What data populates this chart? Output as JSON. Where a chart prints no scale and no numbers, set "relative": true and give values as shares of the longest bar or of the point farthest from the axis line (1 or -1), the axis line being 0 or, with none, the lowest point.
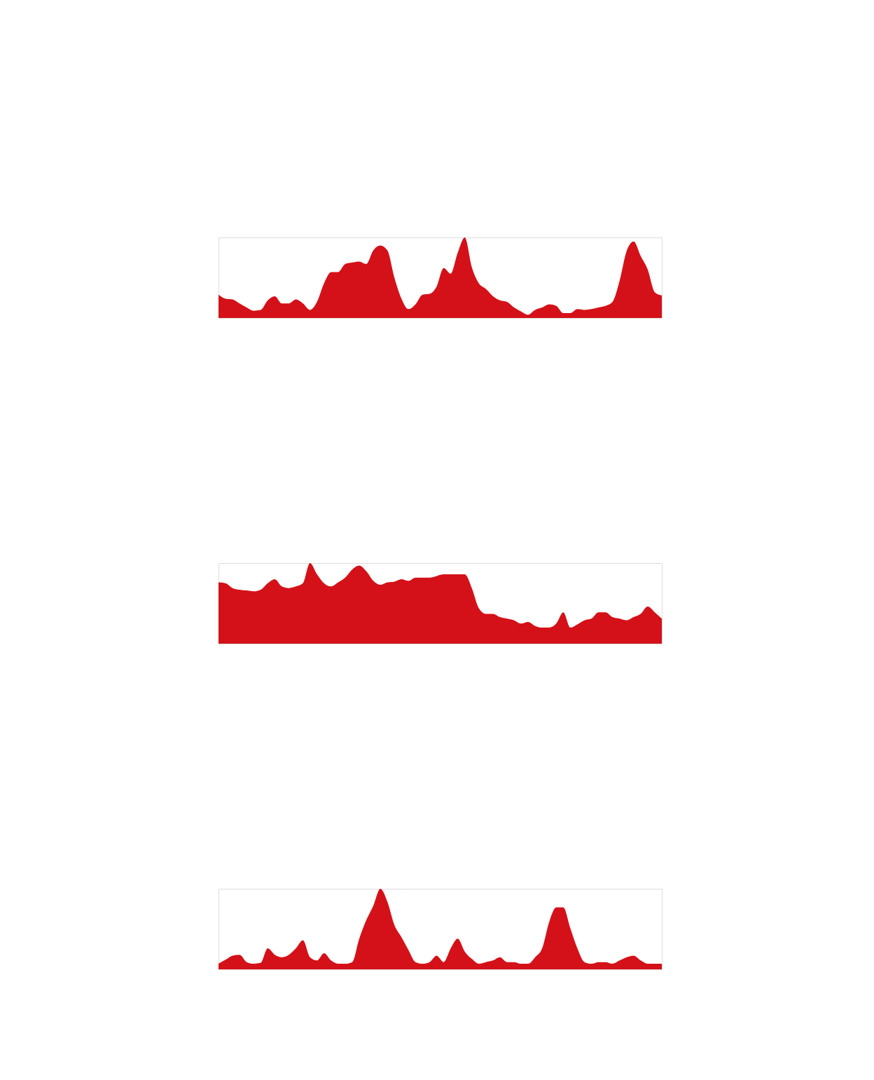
{
  "chart_data": [
    {
      "type": "area",
      "relative": true,
      "tick_labels": false,
      "categories": [
        null,
        null,
        null,
        null,
        null,
        null,
        null,
        null,
        null,
        null,
        null,
        null,
        null,
        null,
        null,
        null,
        null,
        null,
        null,
        null,
        null,
        null,
        null,
        null,
        null,
        null,
        null,
        null,
        null,
        null,
        null,
        null,
        null,
        null,
        null,
        null,
        null,
        null,
        null,
        null,
        null,
        null,
        null,
        null,
        null,
        null,
        null,
        null,
        null,
        null,
        null,
        null,
        null,
        null,
        null,
        null,
        null,
        null,
        null,
        null,
        null,
        null,
        null,
        null
      ],
      "series": [
        {
          "color": "#d41118",
          "values": [
            0.29,
            0.24,
            0.23,
            0.18,
            0.13,
            0.09,
            0.1,
            0.22,
            0.27,
            0.18,
            0.18,
            0.23,
            0.18,
            0.1,
            0.2,
            0.43,
            0.57,
            0.57,
            0.67,
            0.69,
            0.7,
            0.67,
            0.84,
            0.9,
            0.84,
            0.5,
            0.24,
            0.11,
            0.17,
            0.29,
            0.3,
            0.39,
            0.62,
            0.55,
            0.81,
            1,
            0.63,
            0.43,
            0.36,
            0.27,
            0.22,
            0.2,
            0.13,
            0.08,
            0.04,
            0.1,
            0.13,
            0.17,
            0.15,
            0.06,
            0.06,
            0.11,
            0.1,
            0.11,
            0.13,
            0.15,
            0.2,
            0.46,
            0.83,
            0.95,
            0.77,
            0.6,
            0.32,
            0.28
          ]
        }
      ]
    },
    {
      "type": "area",
      "relative": true,
      "tick_labels": false,
      "categories": [
        null,
        null,
        null,
        null,
        null,
        null,
        null,
        null,
        null,
        null,
        null,
        null,
        null,
        null,
        null,
        null,
        null,
        null,
        null,
        null,
        null,
        null,
        null,
        null,
        null,
        null,
        null,
        null,
        null,
        null,
        null,
        null,
        null,
        null,
        null,
        null,
        null,
        null,
        null,
        null,
        null,
        null,
        null,
        null,
        null,
        null,
        null,
        null,
        null,
        null,
        null,
        null,
        null,
        null,
        null,
        null,
        null,
        null,
        null,
        null,
        null,
        null,
        null,
        null
      ],
      "series": [
        {
          "color": "#d41118",
          "values": [
            0.76,
            0.75,
            0.69,
            0.67,
            0.66,
            0.65,
            0.67,
            0.75,
            0.8,
            0.71,
            0.69,
            0.71,
            0.75,
            1,
            0.86,
            0.75,
            0.71,
            0.76,
            0.82,
            0.92,
            0.97,
            0.9,
            0.78,
            0.73,
            0.76,
            0.77,
            0.8,
            0.78,
            0.82,
            0.82,
            0.82,
            0.84,
            0.86,
            0.86,
            0.86,
            0.86,
            0.69,
            0.44,
            0.37,
            0.37,
            0.33,
            0.31,
            0.29,
            0.25,
            0.27,
            0.22,
            0.2,
            0.2,
            0.25,
            0.39,
            0.2,
            0.24,
            0.29,
            0.31,
            0.39,
            0.39,
            0.33,
            0.31,
            0.29,
            0.33,
            0.37,
            0.46,
            0.39,
            0.31
          ]
        }
      ]
    },
    {
      "type": "area",
      "relative": true,
      "tick_labels": false,
      "categories": [
        null,
        null,
        null,
        null,
        null,
        null,
        null,
        null,
        null,
        null,
        null,
        null,
        null,
        null,
        null,
        null,
        null,
        null,
        null,
        null,
        null,
        null,
        null,
        null,
        null,
        null,
        null,
        null,
        null,
        null,
        null,
        null,
        null,
        null,
        null,
        null,
        null,
        null,
        null,
        null,
        null,
        null,
        null,
        null,
        null,
        null,
        null,
        null,
        null,
        null,
        null,
        null,
        null,
        null,
        null,
        null,
        null,
        null,
        null,
        null,
        null,
        null,
        null,
        null
      ],
      "series": [
        {
          "color": "#d41118",
          "values": [
            0.07,
            0.12,
            0.17,
            0.18,
            0.09,
            0.07,
            0.08,
            0.26,
            0.18,
            0.15,
            0.18,
            0.26,
            0.36,
            0.15,
            0.11,
            0.2,
            0.11,
            0.07,
            0.07,
            0.09,
            0.38,
            0.61,
            0.79,
            1,
            0.84,
            0.55,
            0.4,
            0.24,
            0.09,
            0.07,
            0.09,
            0.17,
            0.09,
            0.26,
            0.38,
            0.22,
            0.13,
            0.07,
            0.09,
            0.11,
            0.15,
            0.09,
            0.09,
            0.07,
            0.07,
            0.15,
            0.26,
            0.59,
            0.77,
            0.77,
            0.51,
            0.26,
            0.09,
            0.07,
            0.09,
            0.09,
            0.07,
            0.11,
            0.15,
            0.17,
            0.11,
            0.07,
            0.07,
            0.07
          ]
        }
      ]
    }
  ]
}
